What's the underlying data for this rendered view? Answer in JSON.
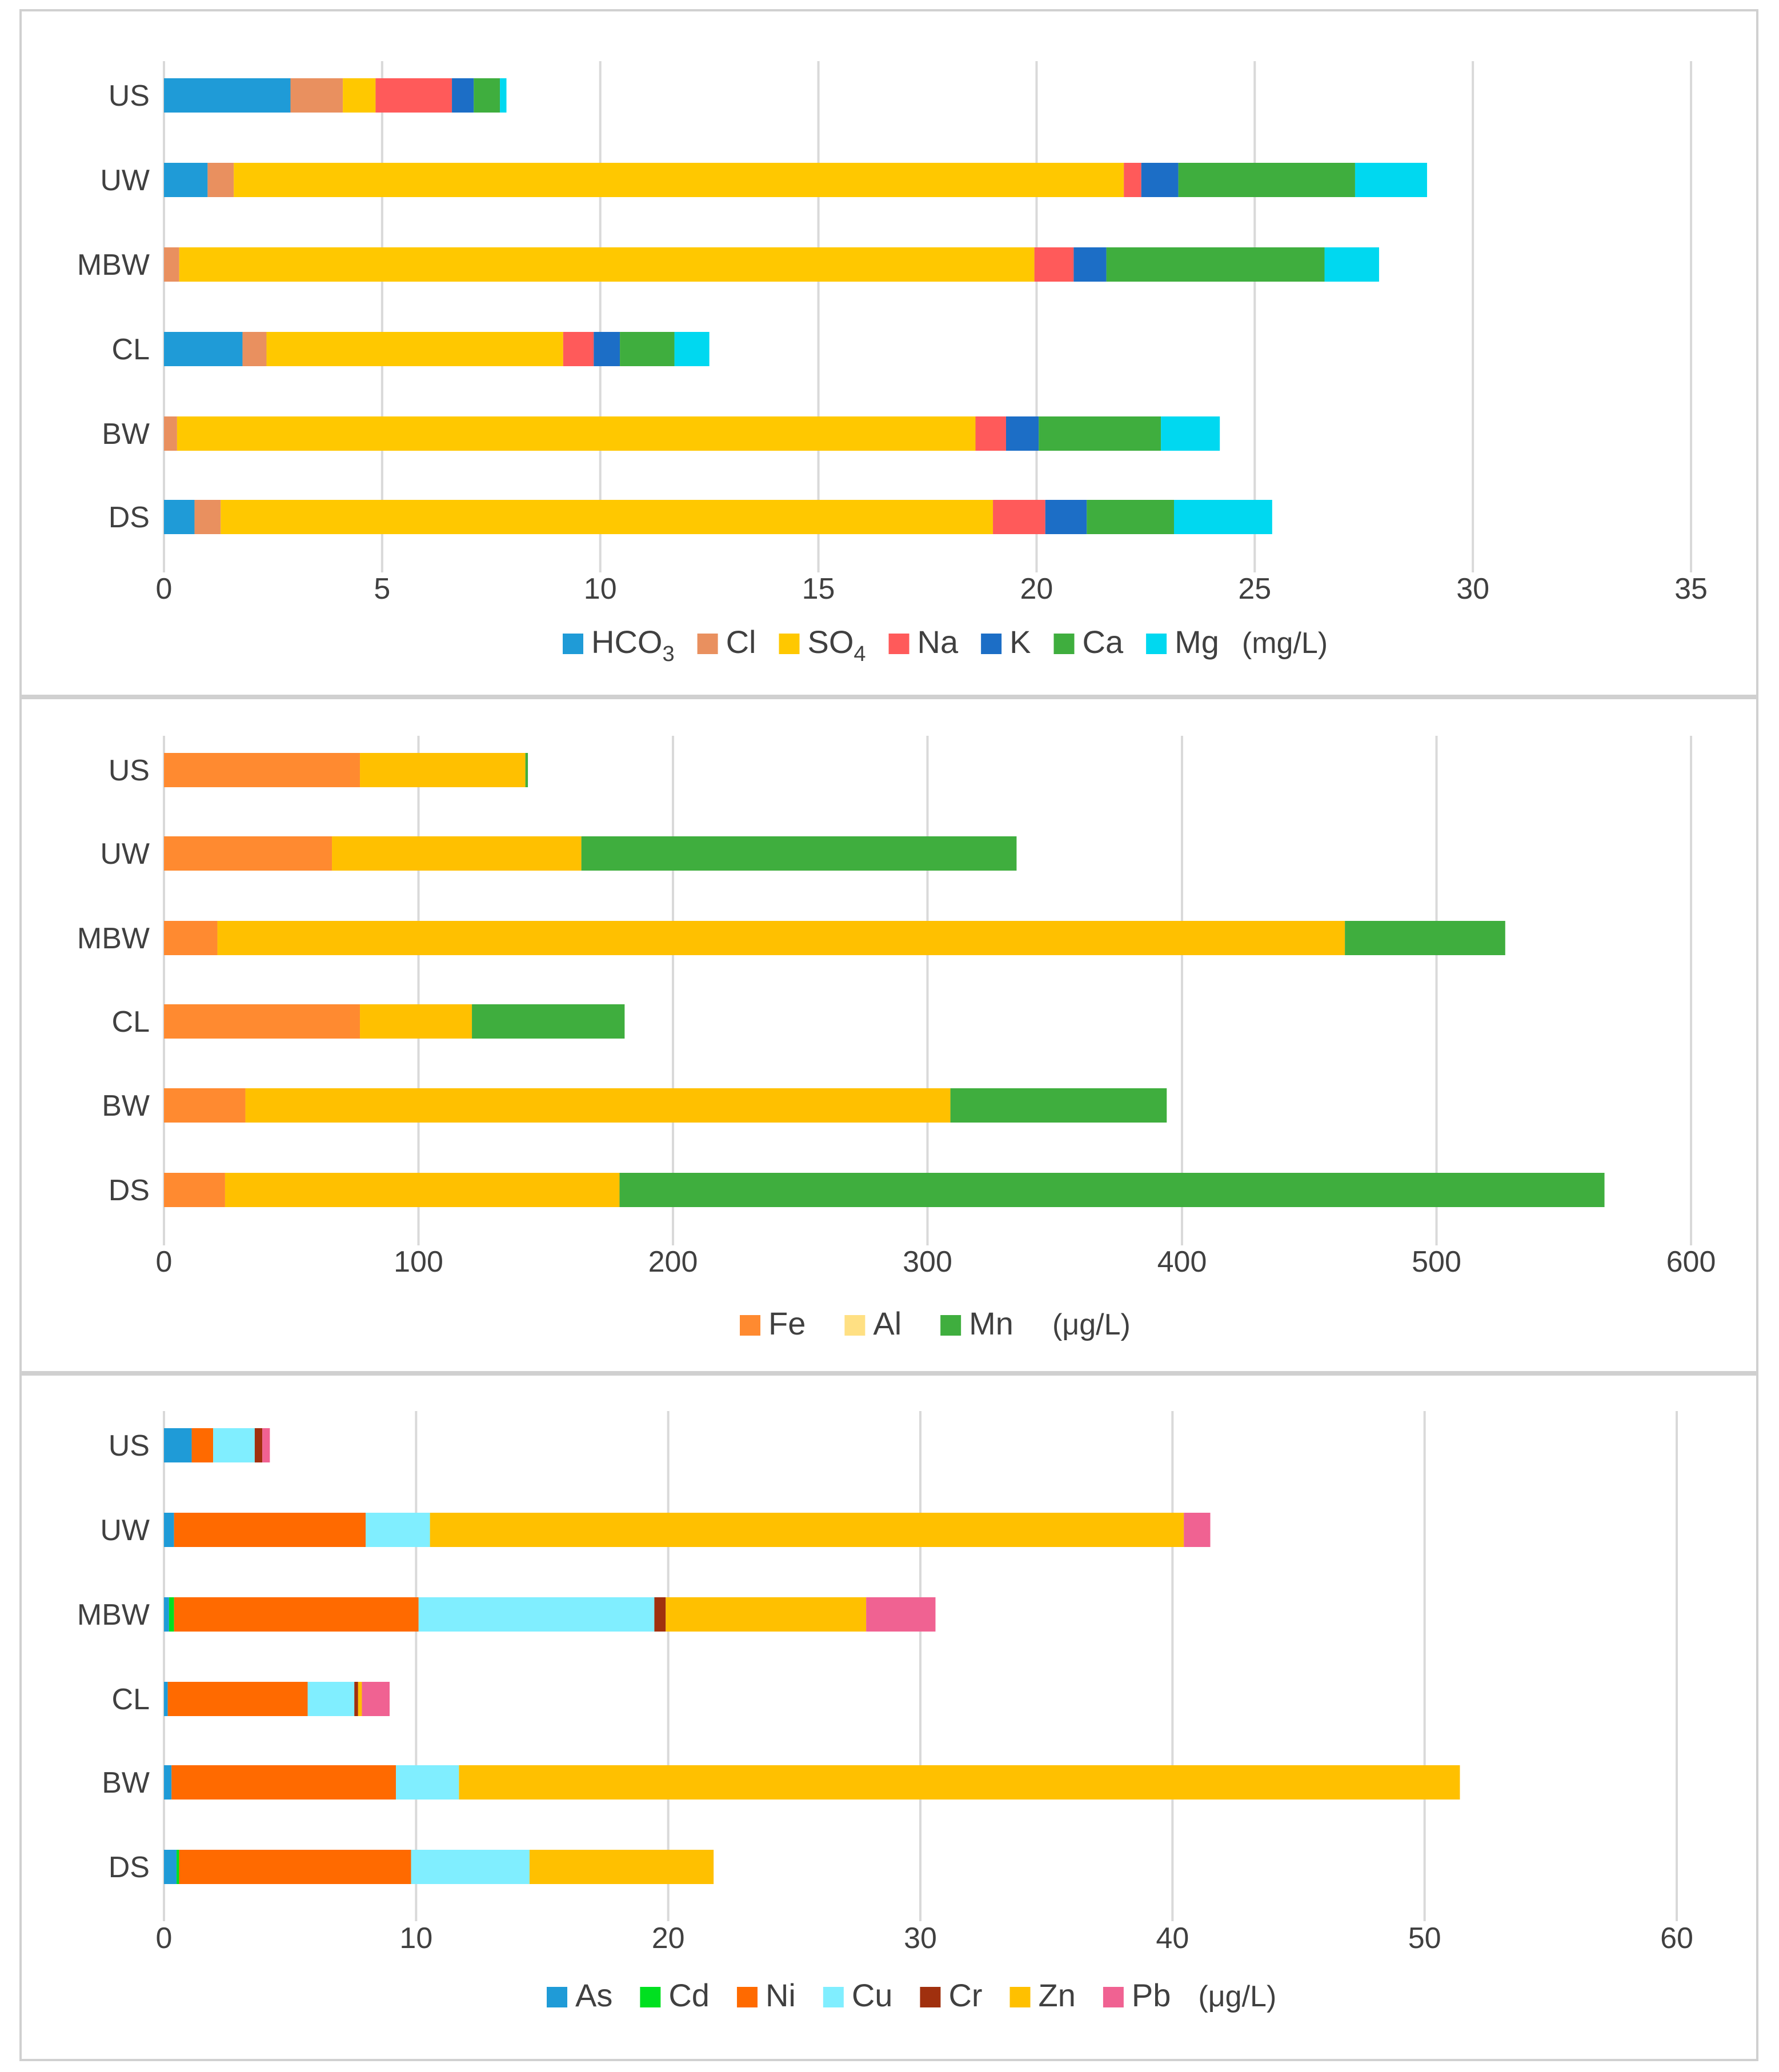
{
  "chart_data": [
    {
      "type": "bar",
      "orientation": "horizontal",
      "stacked": true,
      "categories": [
        "US",
        "UW",
        "MBW",
        "CL",
        "BW",
        "DS"
      ],
      "xlim": [
        0,
        35
      ],
      "xticks": [
        0,
        5,
        10,
        15,
        20,
        25,
        30,
        35
      ],
      "grid": true,
      "legend_position": "bottom",
      "unit": "(mg/L)",
      "series": [
        {
          "name": "HCO",
          "sub": "3",
          "color": "#1F9BD7",
          "values": [
            2.9,
            1.0,
            0.0,
            1.8,
            0.0,
            0.7
          ]
        },
        {
          "name": "Cl",
          "color": "#E9905F",
          "values": [
            1.2,
            0.6,
            0.35,
            0.55,
            0.3,
            0.6
          ]
        },
        {
          "name": "SO",
          "sub": "4",
          "color": "#FFC800",
          "values": [
            0.75,
            20.4,
            19.6,
            6.8,
            18.3,
            17.7
          ]
        },
        {
          "name": "Na",
          "color": "#FF5A5A",
          "values": [
            1.75,
            0.4,
            0.9,
            0.7,
            0.7,
            1.2
          ]
        },
        {
          "name": "K",
          "color": "#1C6EC6",
          "values": [
            0.5,
            0.85,
            0.75,
            0.6,
            0.75,
            0.95
          ]
        },
        {
          "name": "Ca",
          "color": "#3FAE3E",
          "values": [
            0.6,
            4.05,
            5.0,
            1.25,
            2.8,
            2.0
          ]
        },
        {
          "name": "Mg",
          "color": "#00D8F0",
          "values": [
            0.15,
            1.65,
            1.25,
            0.8,
            1.35,
            2.25
          ]
        }
      ]
    },
    {
      "type": "bar",
      "orientation": "horizontal",
      "stacked": true,
      "categories": [
        "US",
        "UW",
        "MBW",
        "CL",
        "BW",
        "DS"
      ],
      "xlim": [
        0,
        600
      ],
      "xticks": [
        0,
        100,
        200,
        300,
        400,
        500,
        600
      ],
      "grid": true,
      "legend_position": "bottom",
      "unit": "(μg/L)",
      "series": [
        {
          "name": "Fe",
          "color": "#FF8A30",
          "legend_color": "#FF8A30",
          "values": [
            77,
            66,
            21,
            77,
            32,
            24
          ]
        },
        {
          "name": "Al",
          "color": "#FFC000",
          "legend_color": "#FFE083",
          "values": [
            65,
            98,
            443,
            44,
            277,
            155
          ]
        },
        {
          "name": "Mn",
          "color": "#3FAE3E",
          "legend_color": "#3FAE3E",
          "values": [
            1,
            171,
            63,
            60,
            85,
            387
          ]
        }
      ]
    },
    {
      "type": "bar",
      "orientation": "horizontal",
      "stacked": true,
      "categories": [
        "US",
        "UW",
        "MBW",
        "CL",
        "BW",
        "DS"
      ],
      "xlim": [
        0,
        60
      ],
      "xticks": [
        0,
        10,
        20,
        30,
        40,
        50,
        60
      ],
      "grid": true,
      "legend_position": "bottom",
      "unit": "(μg/L)",
      "series": [
        {
          "name": "As",
          "color": "#1F9BD7",
          "values": [
            1.1,
            0.4,
            0.2,
            0.15,
            0.3,
            0.5
          ]
        },
        {
          "name": "Cd",
          "color": "#00E020",
          "values": [
            0.0,
            0.0,
            0.2,
            0.0,
            0.0,
            0.1
          ]
        },
        {
          "name": "Ni",
          "color": "#FF6A00",
          "values": [
            0.85,
            7.6,
            9.7,
            5.55,
            8.9,
            9.2
          ]
        },
        {
          "name": "Cu",
          "color": "#80EEFF",
          "values": [
            1.65,
            2.55,
            9.35,
            1.85,
            2.5,
            4.7
          ]
        },
        {
          "name": "Cr",
          "color": "#A0300E",
          "values": [
            0.3,
            0.0,
            0.45,
            0.15,
            0.0,
            0.0
          ]
        },
        {
          "name": "Zn",
          "color": "#FFC000",
          "values": [
            0.0,
            29.9,
            7.95,
            0.15,
            39.7,
            7.3
          ]
        },
        {
          "name": "Pb",
          "color": "#F06292",
          "values": [
            0.3,
            1.05,
            2.75,
            1.1,
            0.0,
            0.0
          ]
        }
      ]
    }
  ]
}
